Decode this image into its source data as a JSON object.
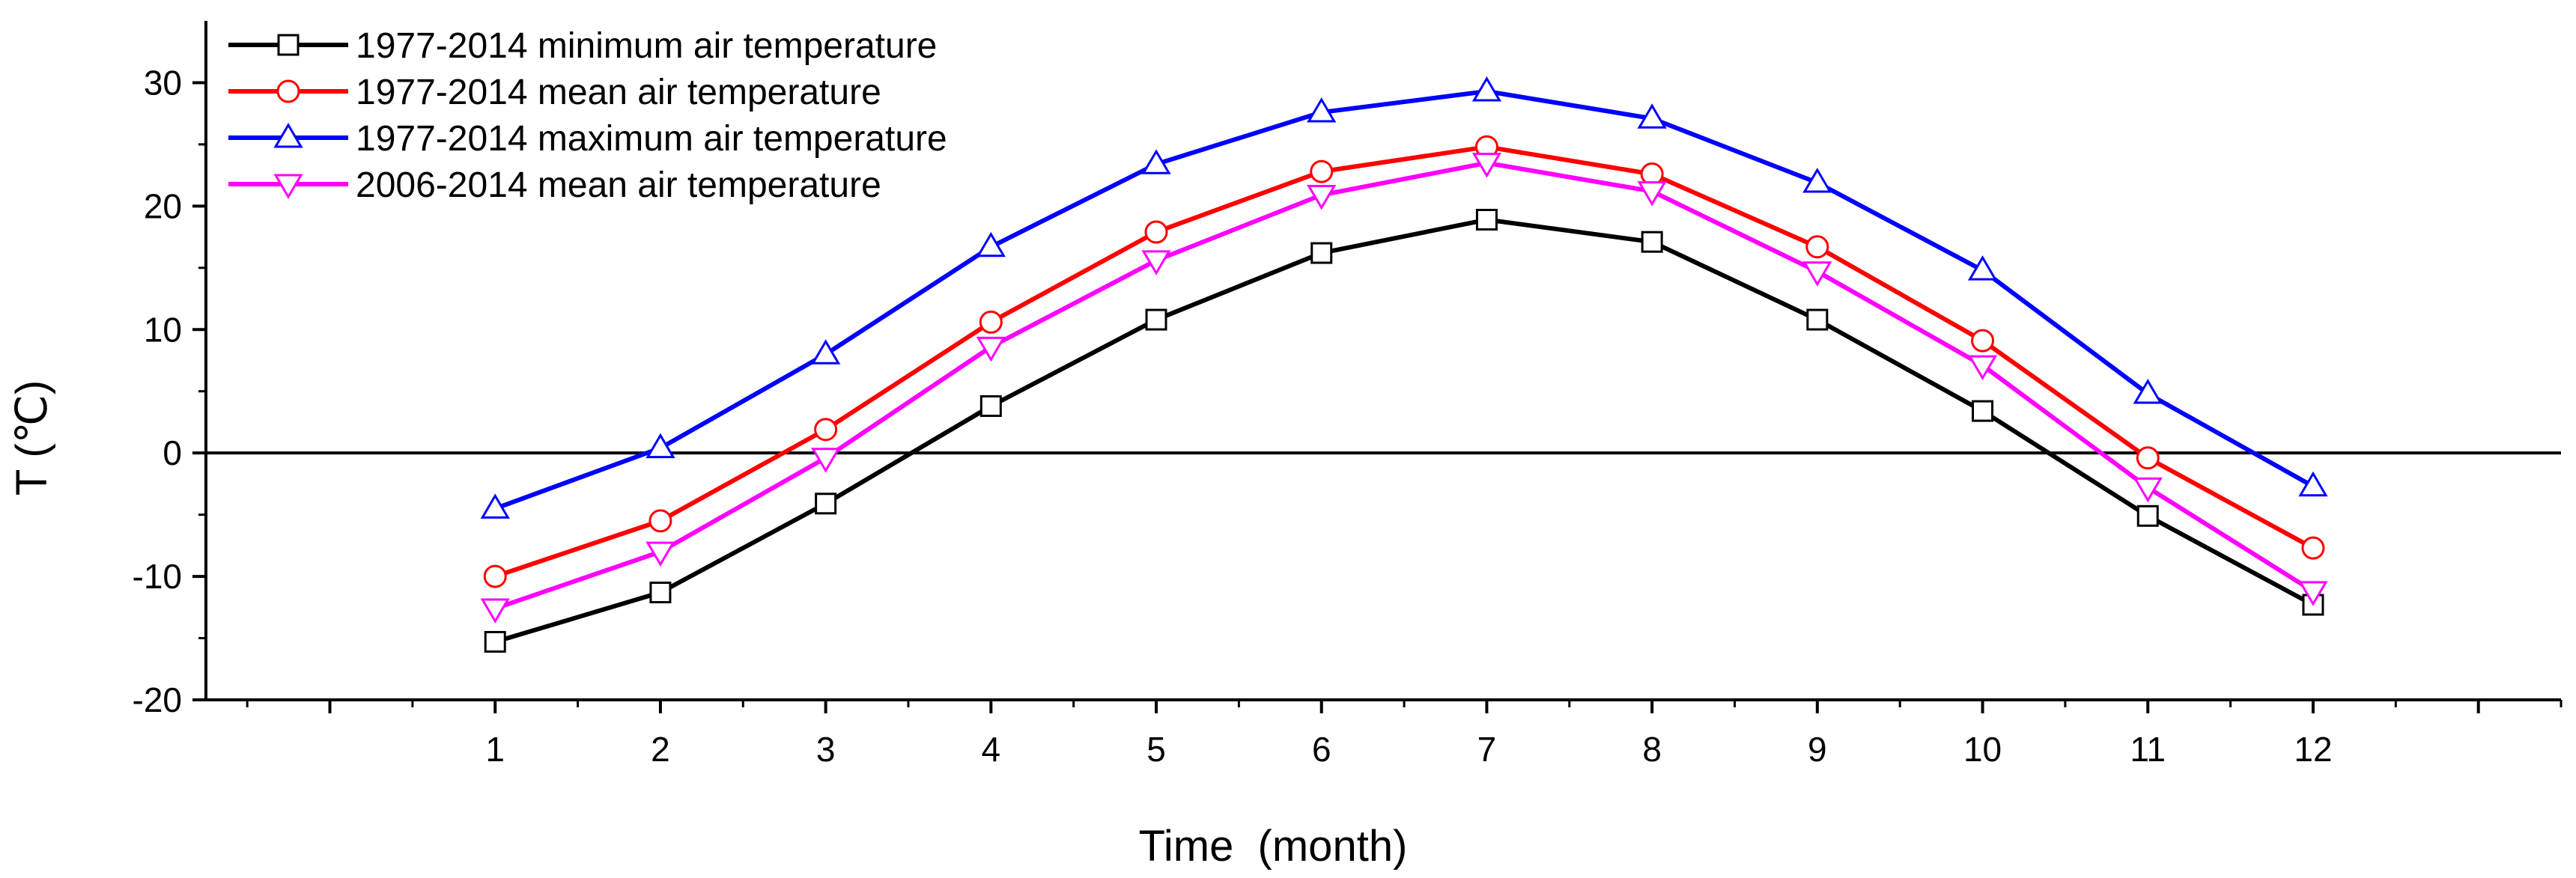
{
  "chart_data": {
    "type": "line",
    "title": "",
    "xlabel": "Time  (month)",
    "ylabel": "T (℃)",
    "x": [
      1,
      2,
      3,
      4,
      5,
      6,
      7,
      8,
      9,
      10,
      11,
      12
    ],
    "xlim": [
      -0.75,
      13.5
    ],
    "ylim": [
      -20,
      35
    ],
    "xticks": [
      "1",
      "2",
      "3",
      "4",
      "5",
      "6",
      "7",
      "8",
      "9",
      "10",
      "11",
      "12"
    ],
    "yticks": [
      "-20",
      "-10",
      "0",
      "10",
      "20",
      "30"
    ],
    "y_tick_values": [
      -20,
      -10,
      0,
      10,
      20,
      30
    ],
    "zero_line": 0,
    "grid": false,
    "legend_position": "top-left",
    "series": [
      {
        "name": "1977-2014 minimum air temperature",
        "color": "#000000",
        "marker": "square",
        "values": [
          -15.3,
          -11.3,
          -4.1,
          3.8,
          10.8,
          16.2,
          18.9,
          17.1,
          10.8,
          3.4,
          -5.1,
          -12.3
        ]
      },
      {
        "name": "1977-2014 mean air temperature",
        "color": "#ff0000",
        "marker": "circle",
        "values": [
          -10.0,
          -5.5,
          1.9,
          10.6,
          17.9,
          22.8,
          24.8,
          22.6,
          16.7,
          9.1,
          -0.4,
          -7.7
        ]
      },
      {
        "name": "1977-2014 maximum air temperature",
        "color": "#0000ff",
        "marker": "triangle-up",
        "values": [
          -4.5,
          0.4,
          8.0,
          16.7,
          23.4,
          27.6,
          29.3,
          27.1,
          21.9,
          14.8,
          4.8,
          -2.7
        ]
      },
      {
        "name": "2006-2014 mean air temperature",
        "color": "#ff00ff",
        "marker": "triangle-down",
        "values": [
          -12.6,
          -8.0,
          -0.4,
          8.6,
          15.6,
          20.9,
          23.5,
          21.2,
          14.7,
          7.1,
          -2.8,
          -11.2
        ]
      }
    ]
  }
}
